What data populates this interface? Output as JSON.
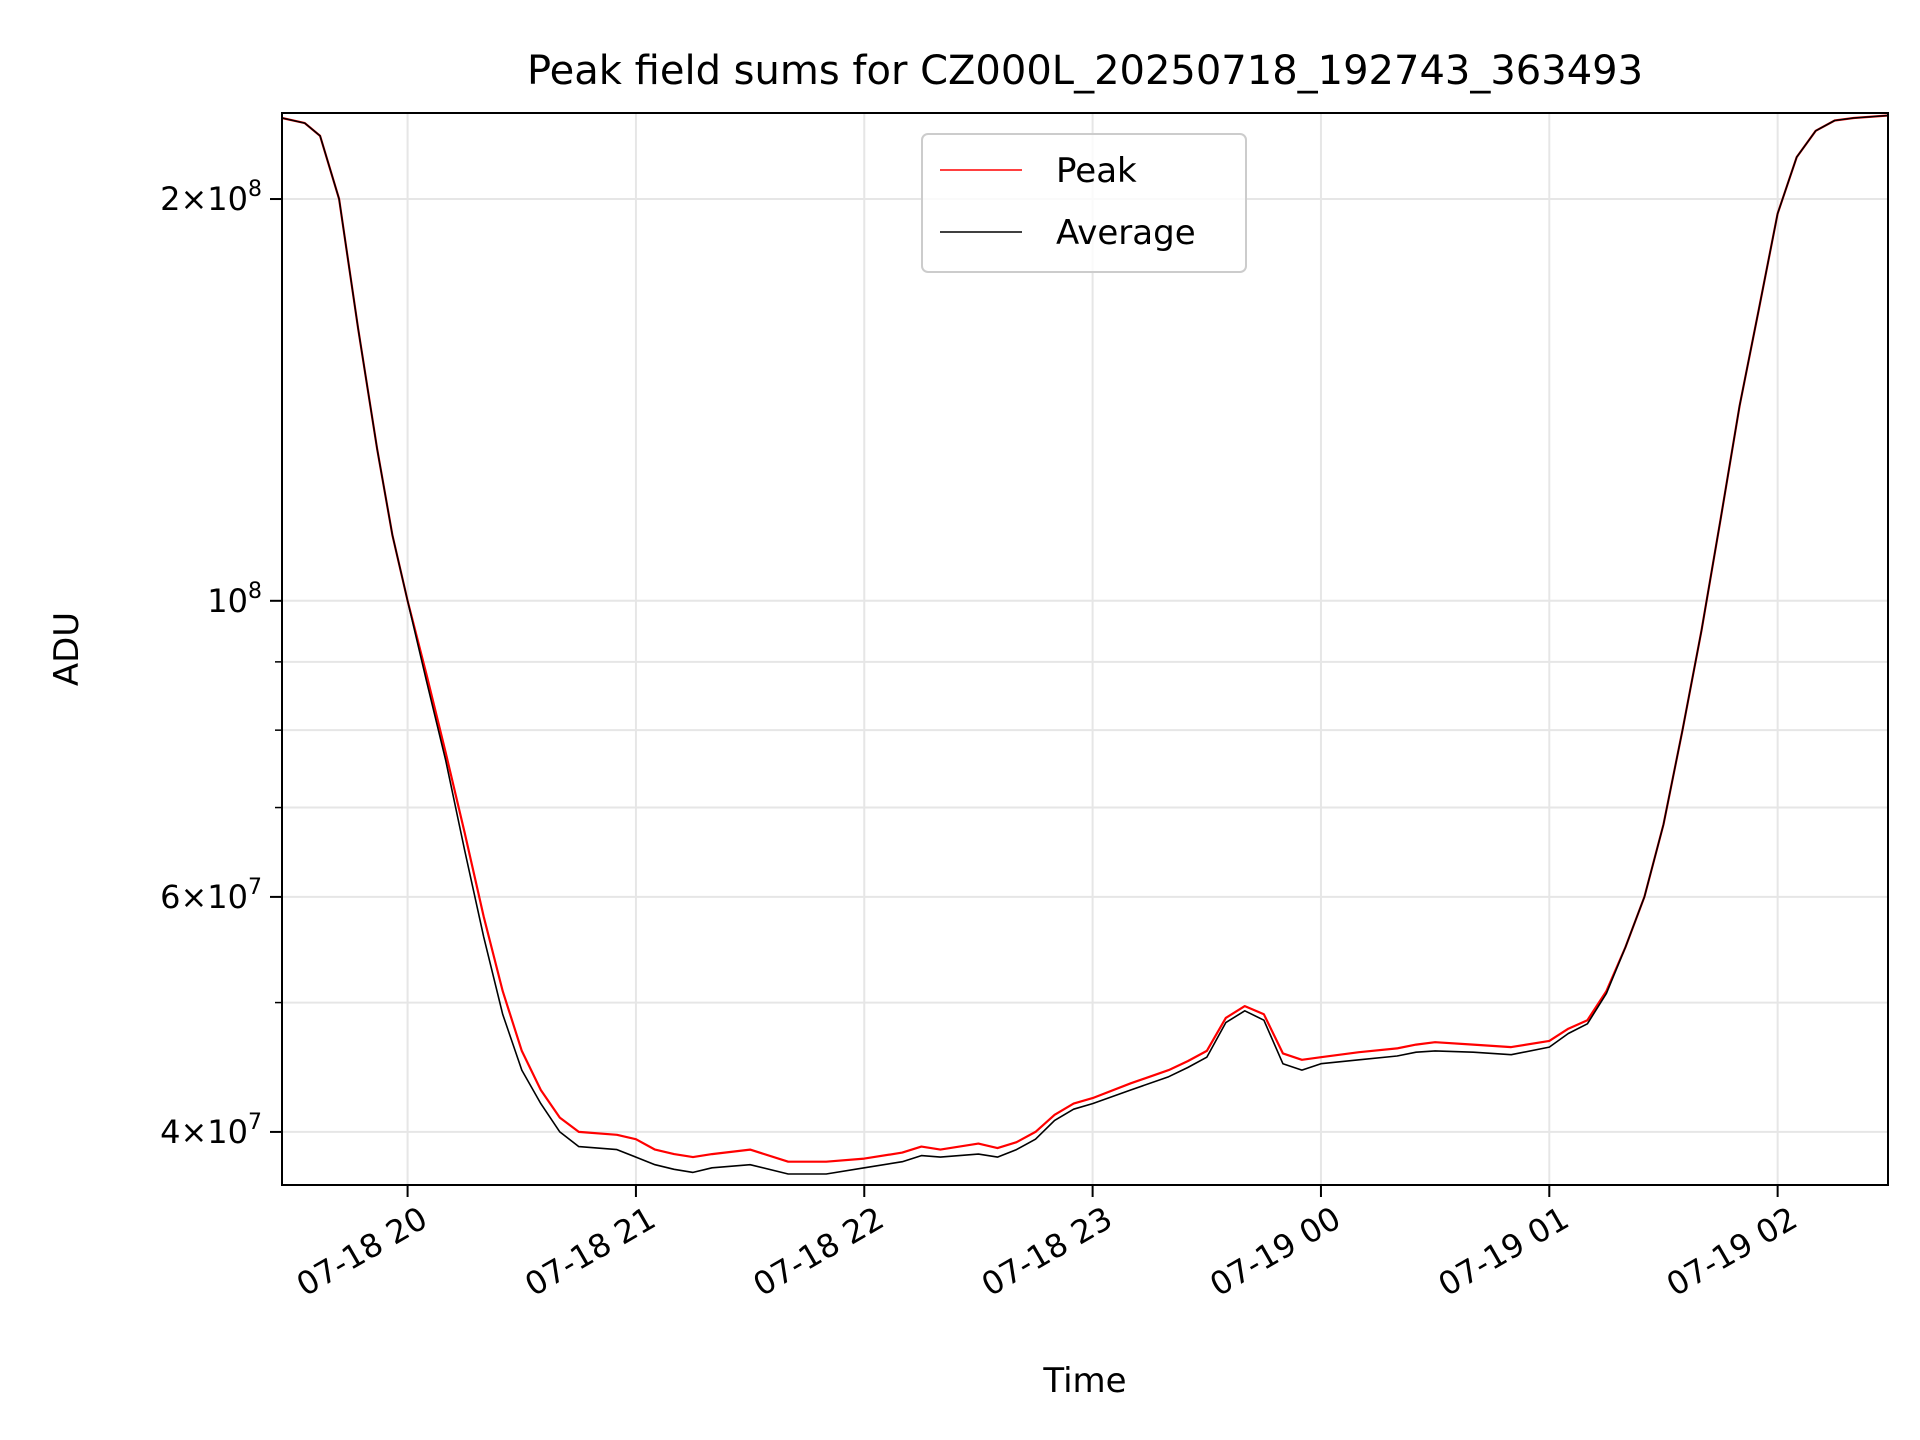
{
  "chart_data": {
    "type": "line",
    "title": "Peak field sums for CZ000L_20250718_192743_363493",
    "xlabel": "Time",
    "ylabel": "ADU",
    "yscale": "log",
    "grid": true,
    "legend_placement": "top-center",
    "xlim": [
      "2025-07-18 19:27",
      "2025-07-19 02:29"
    ],
    "ylim": [
      36500000,
      232000000
    ],
    "x_ticks": [
      {
        "value": "2025-07-18 20:00",
        "label": "07-18 20"
      },
      {
        "value": "2025-07-18 21:00",
        "label": "07-18 21"
      },
      {
        "value": "2025-07-18 22:00",
        "label": "07-18 22"
      },
      {
        "value": "2025-07-18 23:00",
        "label": "07-18 23"
      },
      {
        "value": "2025-07-19 00:00",
        "label": "07-19 00"
      },
      {
        "value": "2025-07-19 01:00",
        "label": "07-19 01"
      },
      {
        "value": "2025-07-19 02:00",
        "label": "07-19 02"
      }
    ],
    "y_ticks": [
      {
        "value": 40000000,
        "base": "4×10",
        "exp": "7"
      },
      {
        "value": 60000000,
        "base": "6×10",
        "exp": "7"
      },
      {
        "value": 100000000,
        "base": "10",
        "exp": "8"
      },
      {
        "value": 200000000,
        "base": "2×10",
        "exp": "8"
      }
    ],
    "y_minor_ticks": [
      50000000,
      70000000,
      80000000,
      90000000
    ],
    "series": [
      {
        "name": "Peak",
        "color": "#ff0000",
        "x": [
          "2025-07-18 19:27",
          "2025-07-18 19:33",
          "2025-07-18 19:37",
          "2025-07-18 19:42",
          "2025-07-18 19:47",
          "2025-07-18 19:52",
          "2025-07-18 19:56",
          "2025-07-18 20:00",
          "2025-07-18 20:05",
          "2025-07-18 20:10",
          "2025-07-18 20:15",
          "2025-07-18 20:20",
          "2025-07-18 20:25",
          "2025-07-18 20:30",
          "2025-07-18 20:35",
          "2025-07-18 20:40",
          "2025-07-18 20:45",
          "2025-07-18 20:55",
          "2025-07-18 21:00",
          "2025-07-18 21:05",
          "2025-07-18 21:10",
          "2025-07-18 21:15",
          "2025-07-18 21:20",
          "2025-07-18 21:30",
          "2025-07-18 21:40",
          "2025-07-18 21:50",
          "2025-07-18 22:00",
          "2025-07-18 22:10",
          "2025-07-18 22:15",
          "2025-07-18 22:20",
          "2025-07-18 22:30",
          "2025-07-18 22:35",
          "2025-07-18 22:40",
          "2025-07-18 22:45",
          "2025-07-18 22:50",
          "2025-07-18 22:55",
          "2025-07-18 23:00",
          "2025-07-18 23:10",
          "2025-07-18 23:20",
          "2025-07-18 23:25",
          "2025-07-18 23:30",
          "2025-07-18 23:35",
          "2025-07-18 23:40",
          "2025-07-18 23:45",
          "2025-07-18 23:50",
          "2025-07-18 23:55",
          "2025-07-19 00:00",
          "2025-07-19 00:10",
          "2025-07-19 00:20",
          "2025-07-19 00:25",
          "2025-07-19 00:30",
          "2025-07-19 00:40",
          "2025-07-19 00:50",
          "2025-07-19 01:00",
          "2025-07-19 01:05",
          "2025-07-19 01:10",
          "2025-07-19 01:15",
          "2025-07-19 01:20",
          "2025-07-19 01:25",
          "2025-07-19 01:30",
          "2025-07-19 01:35",
          "2025-07-19 01:40",
          "2025-07-19 01:45",
          "2025-07-19 01:50",
          "2025-07-19 01:55",
          "2025-07-19 02:00",
          "2025-07-19 02:05",
          "2025-07-19 02:10",
          "2025-07-19 02:15",
          "2025-07-19 02:20",
          "2025-07-19 02:29"
        ],
        "y": [
          230000000,
          228000000,
          223000000,
          200000000,
          160000000,
          130000000,
          112000000,
          100000000,
          88000000,
          77000000,
          67000000,
          58000000,
          51000000,
          46000000,
          43000000,
          41000000,
          40000000,
          39800000,
          39500000,
          38800000,
          38500000,
          38300000,
          38500000,
          38800000,
          38000000,
          38000000,
          38200000,
          38600000,
          39000000,
          38800000,
          39200000,
          38900000,
          39300000,
          40000000,
          41200000,
          42000000,
          42400000,
          43500000,
          44500000,
          45200000,
          46000000,
          48700000,
          49700000,
          49000000,
          45800000,
          45300000,
          45500000,
          45900000,
          46200000,
          46500000,
          46700000,
          46500000,
          46300000,
          46800000,
          47800000,
          48500000,
          51000000,
          55000000,
          60000000,
          68000000,
          80000000,
          95000000,
          115000000,
          140000000,
          165000000,
          195000000,
          215000000,
          225000000,
          229000000,
          230000000,
          231000000
        ]
      },
      {
        "name": "Average",
        "color": "#000000",
        "x": [
          "2025-07-18 19:27",
          "2025-07-18 19:33",
          "2025-07-18 19:37",
          "2025-07-18 19:42",
          "2025-07-18 19:47",
          "2025-07-18 19:52",
          "2025-07-18 19:56",
          "2025-07-18 20:00",
          "2025-07-18 20:05",
          "2025-07-18 20:10",
          "2025-07-18 20:15",
          "2025-07-18 20:20",
          "2025-07-18 20:25",
          "2025-07-18 20:30",
          "2025-07-18 20:35",
          "2025-07-18 20:40",
          "2025-07-18 20:45",
          "2025-07-18 20:55",
          "2025-07-18 21:00",
          "2025-07-18 21:05",
          "2025-07-18 21:10",
          "2025-07-18 21:15",
          "2025-07-18 21:20",
          "2025-07-18 21:30",
          "2025-07-18 21:40",
          "2025-07-18 21:50",
          "2025-07-18 22:00",
          "2025-07-18 22:10",
          "2025-07-18 22:15",
          "2025-07-18 22:20",
          "2025-07-18 22:30",
          "2025-07-18 22:35",
          "2025-07-18 22:40",
          "2025-07-18 22:45",
          "2025-07-18 22:50",
          "2025-07-18 22:55",
          "2025-07-18 23:00",
          "2025-07-18 23:10",
          "2025-07-18 23:20",
          "2025-07-18 23:25",
          "2025-07-18 23:30",
          "2025-07-18 23:35",
          "2025-07-18 23:40",
          "2025-07-18 23:45",
          "2025-07-18 23:50",
          "2025-07-18 23:55",
          "2025-07-19 00:00",
          "2025-07-19 00:10",
          "2025-07-19 00:20",
          "2025-07-19 00:25",
          "2025-07-19 00:30",
          "2025-07-19 00:40",
          "2025-07-19 00:50",
          "2025-07-19 01:00",
          "2025-07-19 01:05",
          "2025-07-19 01:10",
          "2025-07-19 01:15",
          "2025-07-19 01:20",
          "2025-07-19 01:25",
          "2025-07-19 01:30",
          "2025-07-19 01:35",
          "2025-07-19 01:40",
          "2025-07-19 01:45",
          "2025-07-19 01:50",
          "2025-07-19 01:55",
          "2025-07-19 02:00",
          "2025-07-19 02:05",
          "2025-07-19 02:10",
          "2025-07-19 02:15",
          "2025-07-19 02:20",
          "2025-07-19 02:29"
        ],
        "y": [
          230000000,
          228000000,
          223000000,
          200000000,
          160000000,
          130000000,
          112000000,
          100000000,
          87000000,
          76000000,
          65000000,
          56000000,
          49000000,
          44500000,
          42000000,
          40000000,
          39000000,
          38800000,
          38300000,
          37800000,
          37500000,
          37300000,
          37600000,
          37800000,
          37200000,
          37200000,
          37600000,
          38000000,
          38400000,
          38300000,
          38500000,
          38300000,
          38800000,
          39500000,
          40800000,
          41600000,
          42000000,
          43000000,
          44000000,
          44700000,
          45500000,
          48300000,
          49300000,
          48500000,
          45000000,
          44500000,
          45000000,
          45300000,
          45600000,
          45900000,
          46000000,
          45900000,
          45700000,
          46300000,
          47400000,
          48200000,
          50800000,
          55000000,
          60000000,
          68000000,
          80000000,
          95000000,
          115000000,
          140000000,
          165000000,
          195000000,
          215000000,
          225000000,
          229000000,
          230000000,
          231000000
        ]
      }
    ]
  }
}
